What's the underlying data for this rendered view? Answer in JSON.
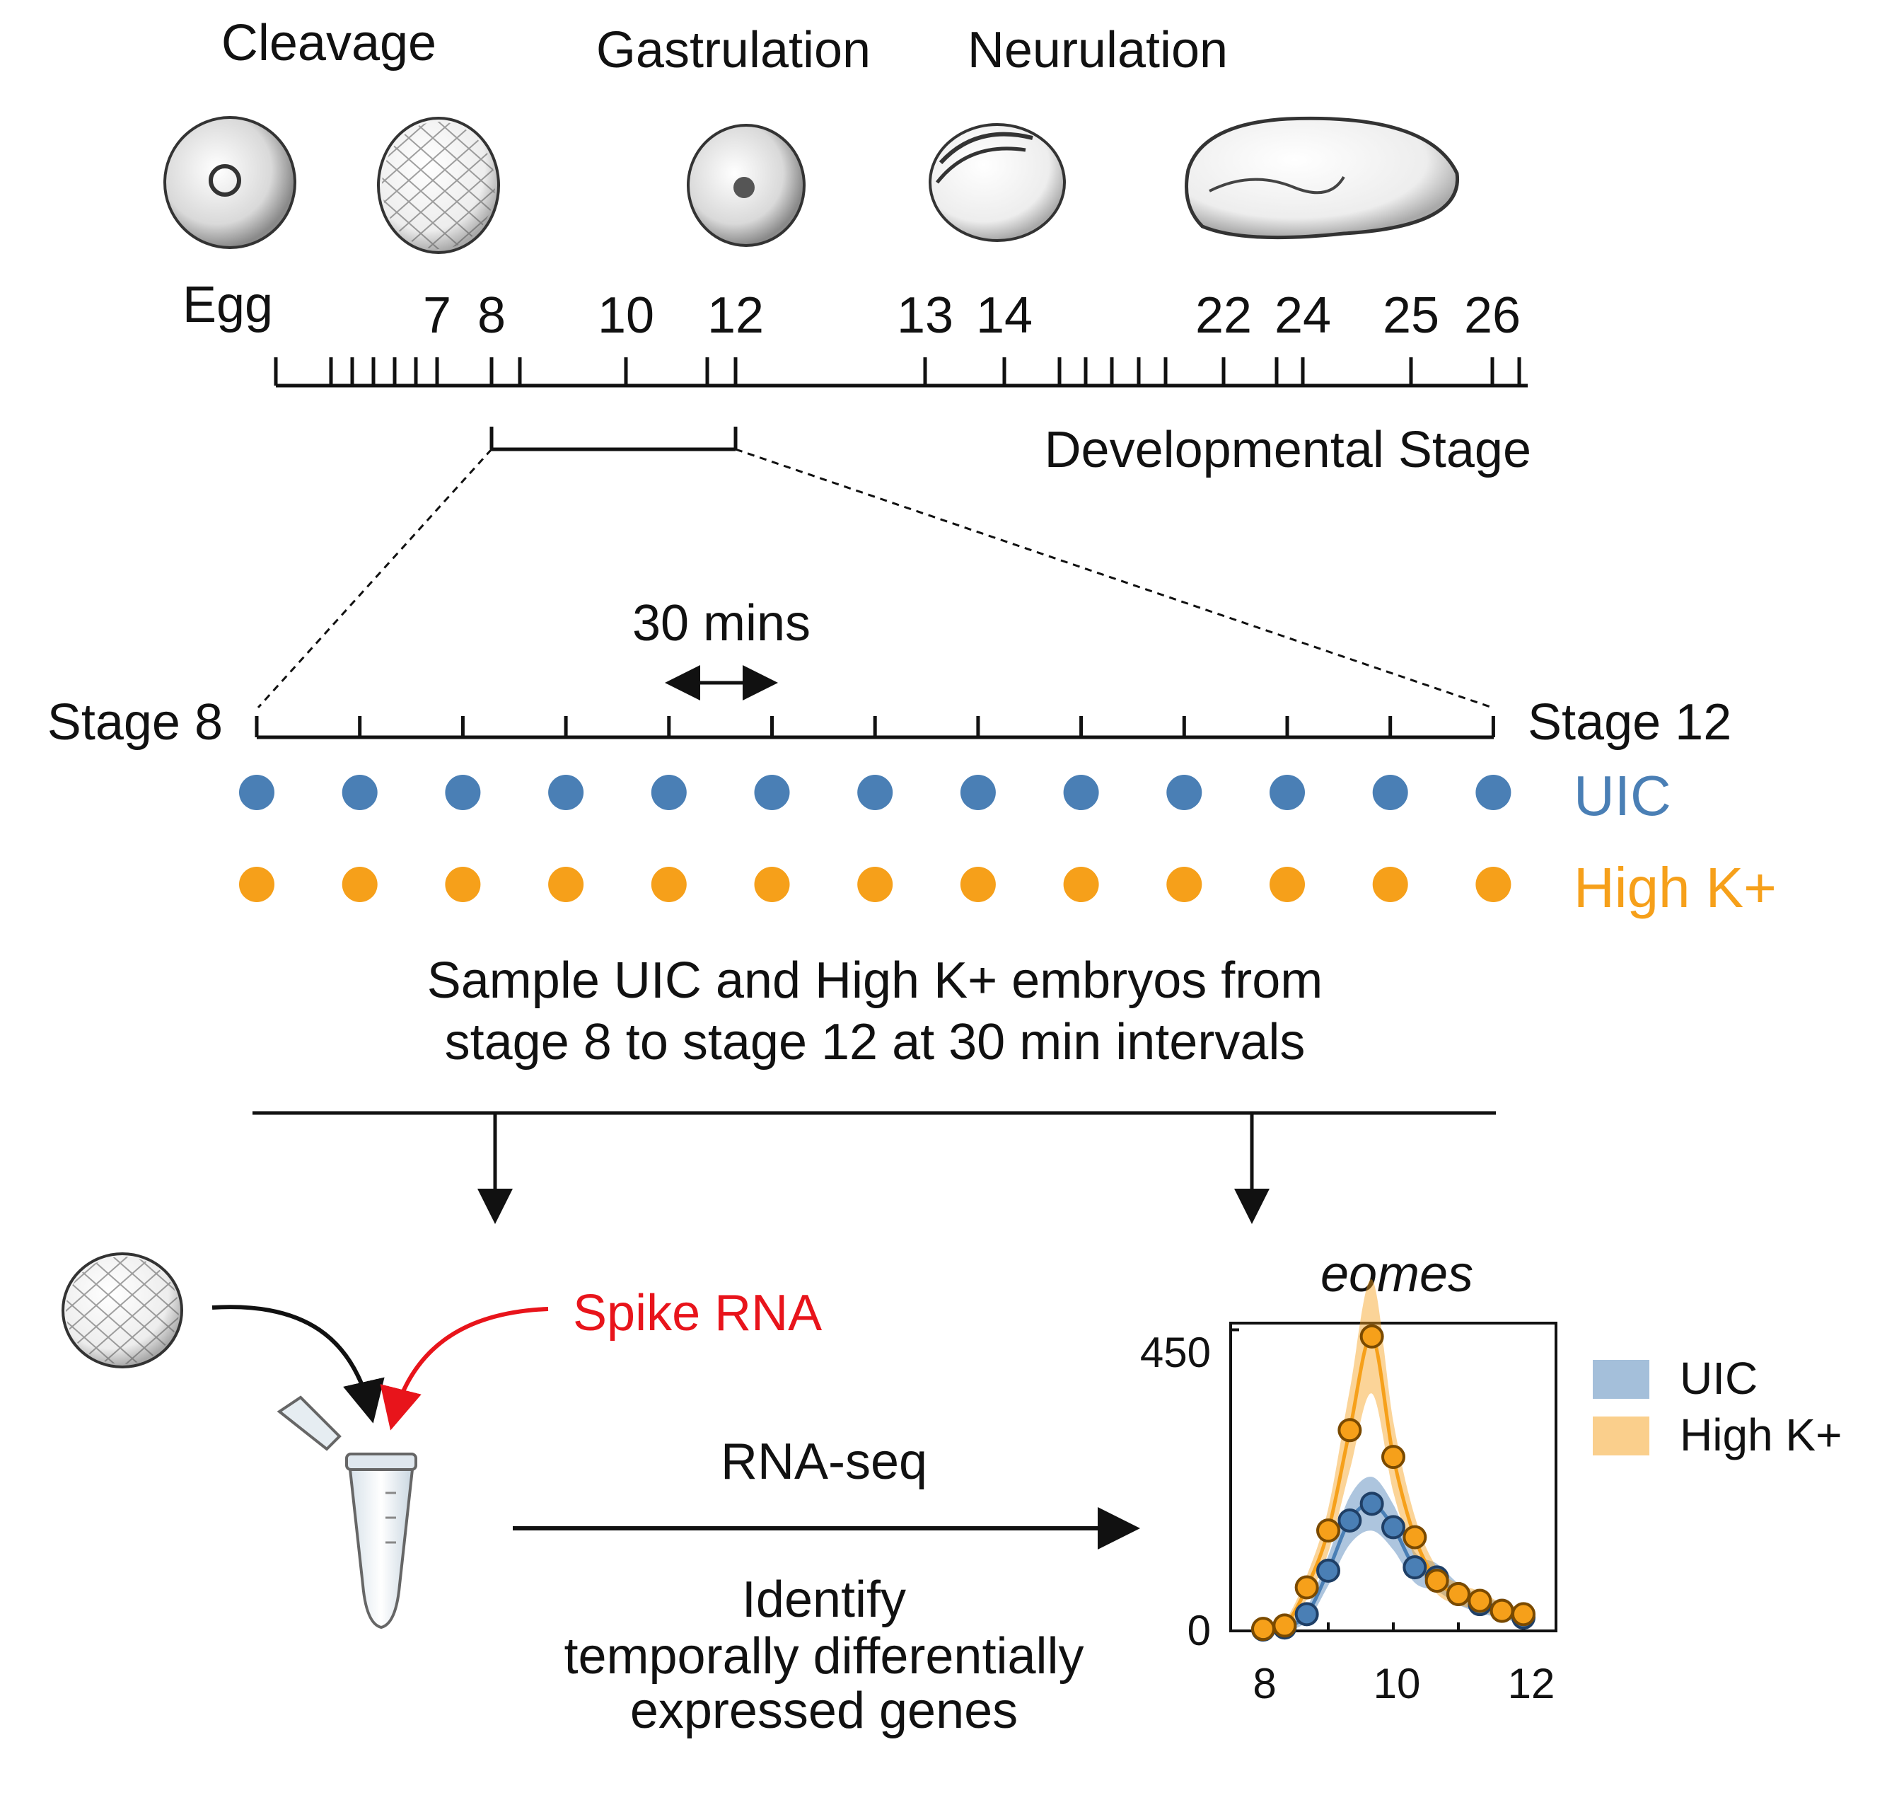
{
  "top": {
    "phases": [
      "Cleavage",
      "Gastrulation",
      "Neurulation"
    ],
    "stage_labels": [
      "Egg",
      "7",
      "8",
      "10",
      "12",
      "13",
      "14",
      "22",
      "24",
      "25",
      "26"
    ],
    "axis_title": "Developmental Stage"
  },
  "zoom": {
    "interval_label": "30 mins",
    "start_label": "Stage 8",
    "end_label": "Stage 12",
    "uic_label": "UIC",
    "highk_label": "High K+",
    "caption_line1": "Sample UIC and High K+ embryos from",
    "caption_line2": "stage 8 to stage 12 at 30 min intervals",
    "sample_count": 13
  },
  "bottom": {
    "spike_label": "Spike RNA",
    "method_label": "RNA-seq",
    "identify_line1": "Identify",
    "identify_line2": "temporally differentially",
    "identify_line3": "expressed genes"
  },
  "colors": {
    "uic": "#4a7fb5",
    "highk": "#f6a01a",
    "spike": "#e8141b"
  },
  "chart_data": {
    "type": "line",
    "title": "eomes",
    "x_ticks": [
      "8",
      "10",
      "12"
    ],
    "y_ticks": [
      "450",
      "0"
    ],
    "xlim": [
      7.5,
      12.5
    ],
    "ylim": [
      0,
      460
    ],
    "legend": [
      "UIC",
      "High K+"
    ],
    "legend_position": "right",
    "series": [
      {
        "name": "UIC",
        "x": [
          8.0,
          8.33,
          8.67,
          9.0,
          9.33,
          9.67,
          10.0,
          10.33,
          10.67,
          11.0,
          11.33,
          11.67,
          12.0
        ],
        "values": [
          2,
          5,
          25,
          90,
          165,
          190,
          155,
          95,
          80,
          55,
          40,
          30,
          20
        ]
      },
      {
        "name": "High K+",
        "x": [
          8.0,
          8.33,
          8.67,
          9.0,
          9.33,
          9.67,
          10.0,
          10.33,
          10.67,
          11.0,
          11.33,
          11.67,
          12.0
        ],
        "values": [
          3,
          8,
          65,
          150,
          300,
          440,
          260,
          140,
          75,
          55,
          45,
          30,
          25
        ]
      }
    ]
  }
}
